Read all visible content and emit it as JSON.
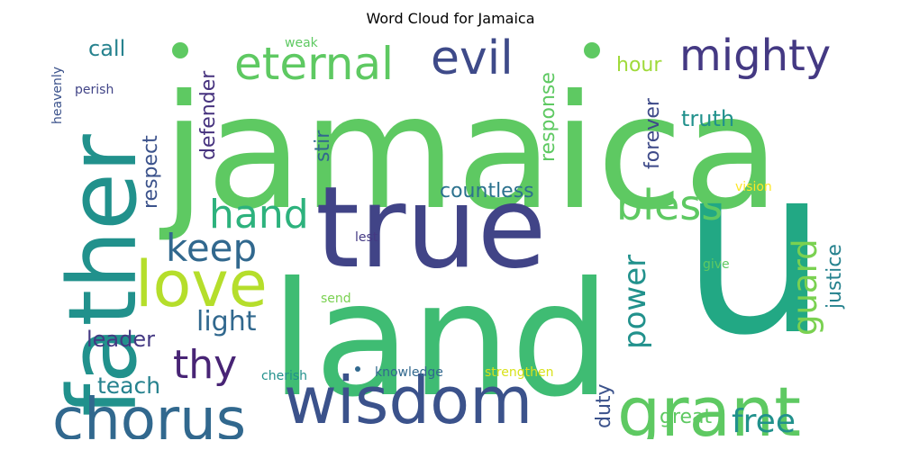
{
  "chart_data": {
    "type": "wordcloud",
    "title": "Word Cloud for Jamaica",
    "colormap": "viridis",
    "background": "#ffffff",
    "words": [
      {
        "text": "jamaica",
        "weight": 1.0,
        "color": "#5ec962"
      },
      {
        "text": "u",
        "weight": 0.98,
        "color": "#22a884"
      },
      {
        "text": "land",
        "weight": 0.97,
        "color": "#3fbc73"
      },
      {
        "text": "true",
        "weight": 0.82,
        "color": "#414487"
      },
      {
        "text": "father",
        "weight": 0.7,
        "color": "#21918c"
      },
      {
        "text": "wisdom",
        "weight": 0.52,
        "color": "#3b528b"
      },
      {
        "text": "grant",
        "weight": 0.52,
        "color": "#5ec962"
      },
      {
        "text": "chorus",
        "weight": 0.48,
        "color": "#31688e"
      },
      {
        "text": "love",
        "weight": 0.44,
        "color": "#b5de2b"
      },
      {
        "text": "eternal",
        "weight": 0.38,
        "color": "#5ec962"
      },
      {
        "text": "evil",
        "weight": 0.38,
        "color": "#3e4a89"
      },
      {
        "text": "mighty",
        "weight": 0.36,
        "color": "#443983"
      },
      {
        "text": "bless",
        "weight": 0.34,
        "color": "#5ec962"
      },
      {
        "text": "hand",
        "weight": 0.3,
        "color": "#2db27d"
      },
      {
        "text": "keep",
        "weight": 0.3,
        "color": "#31688e"
      },
      {
        "text": "thy",
        "weight": 0.3,
        "color": "#482475"
      },
      {
        "text": "guard",
        "weight": 0.28,
        "color": "#7ad151"
      },
      {
        "text": "free",
        "weight": 0.26,
        "color": "#21918c"
      },
      {
        "text": "power",
        "weight": 0.24,
        "color": "#21918c"
      },
      {
        "text": "light",
        "weight": 0.2,
        "color": "#31688e"
      },
      {
        "text": "leader",
        "weight": 0.18,
        "color": "#443983"
      },
      {
        "text": "teach",
        "weight": 0.18,
        "color": "#26828e"
      },
      {
        "text": "call",
        "weight": 0.18,
        "color": "#26828e"
      },
      {
        "text": "hour",
        "weight": 0.16,
        "color": "#9fda3a"
      },
      {
        "text": "truth",
        "weight": 0.16,
        "color": "#21918c"
      },
      {
        "text": "countless",
        "weight": 0.16,
        "color": "#2c728e"
      },
      {
        "text": "defender",
        "weight": 0.16,
        "color": "#46327e"
      },
      {
        "text": "respect",
        "weight": 0.16,
        "color": "#3b528b"
      },
      {
        "text": "stir",
        "weight": 0.16,
        "color": "#31688e"
      },
      {
        "text": "response",
        "weight": 0.16,
        "color": "#5ec962"
      },
      {
        "text": "forever",
        "weight": 0.16,
        "color": "#3e4a89"
      },
      {
        "text": "justice",
        "weight": 0.16,
        "color": "#26828e"
      },
      {
        "text": "duty",
        "weight": 0.16,
        "color": "#3b528b"
      },
      {
        "text": "great",
        "weight": 0.16,
        "color": "#5ec962"
      },
      {
        "text": "knowledge",
        "weight": 0.1,
        "color": "#31688e"
      },
      {
        "text": "strengthen",
        "weight": 0.1,
        "color": "#d8e219"
      },
      {
        "text": "cherish",
        "weight": 0.1,
        "color": "#21918c"
      },
      {
        "text": "vision",
        "weight": 0.1,
        "color": "#fde725"
      },
      {
        "text": "lest",
        "weight": 0.1,
        "color": "#443983"
      },
      {
        "text": "give",
        "weight": 0.1,
        "color": "#5ec962"
      },
      {
        "text": "send",
        "weight": 0.1,
        "color": "#7ad151"
      },
      {
        "text": "weak",
        "weight": 0.1,
        "color": "#5ec962"
      },
      {
        "text": "perish",
        "weight": 0.1,
        "color": "#414487"
      },
      {
        "text": "heavenly",
        "weight": 0.1,
        "color": "#3b528b"
      }
    ]
  }
}
